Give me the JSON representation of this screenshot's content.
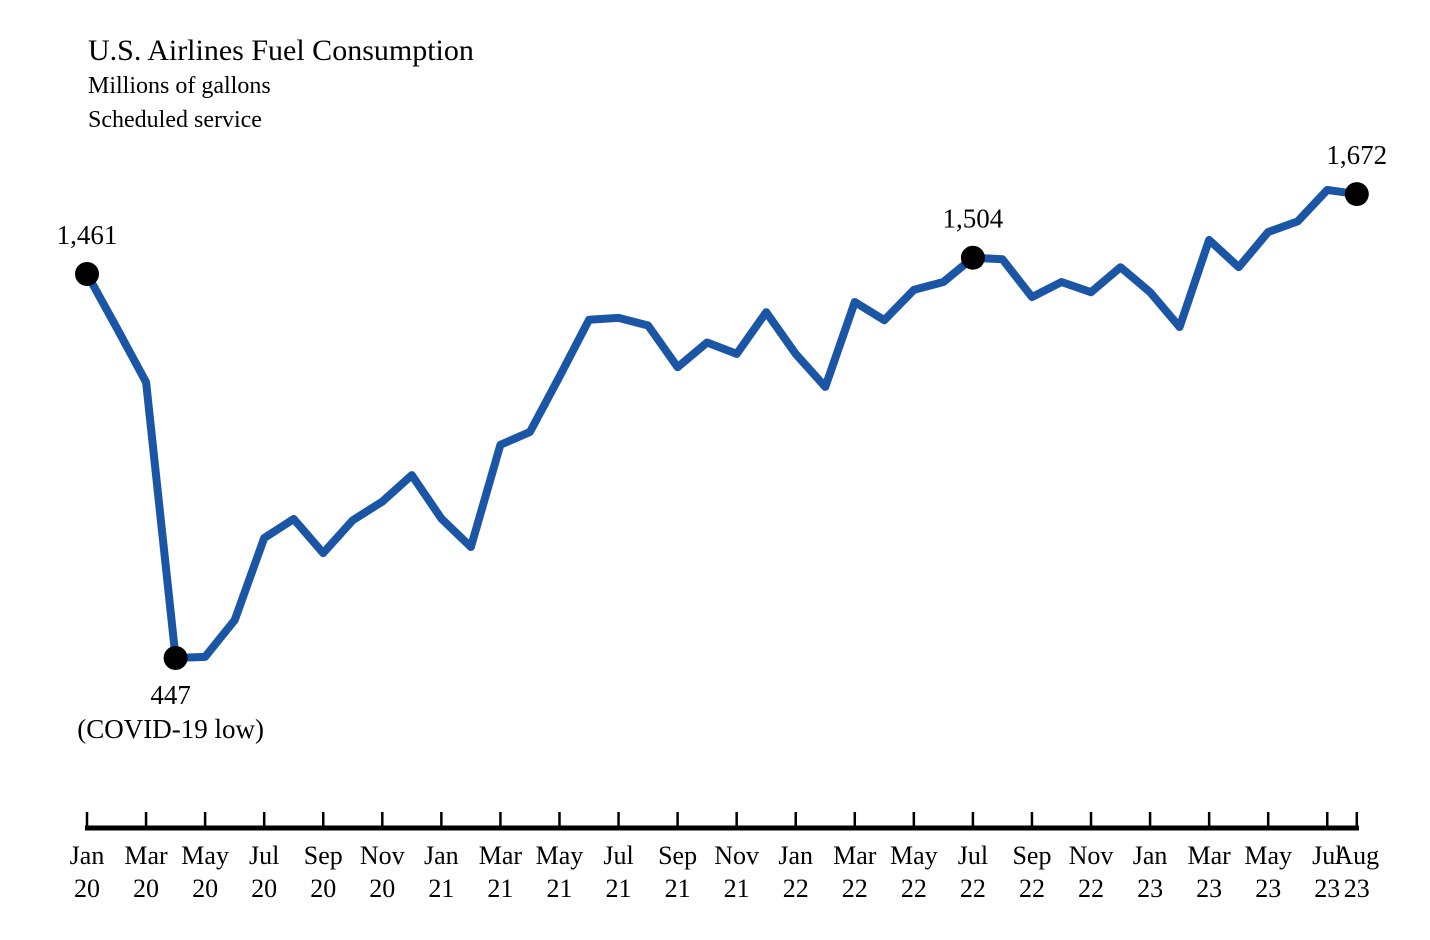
{
  "header": {
    "title": "U.S. Airlines Fuel Consumption",
    "subtitle_units": "Millions of gallons",
    "subtitle_service": "Scheduled service"
  },
  "chart_data": {
    "type": "line",
    "title": "U.S. Airlines Fuel Consumption",
    "ylabel": "Millions of gallons",
    "note": "Scheduled service",
    "legend": "none",
    "grid": false,
    "x": [
      "Jan 20",
      "Feb 20",
      "Mar 20",
      "Apr 20",
      "May 20",
      "Jun 20",
      "Jul 20",
      "Aug 20",
      "Sep 20",
      "Oct 20",
      "Nov 20",
      "Dec 20",
      "Jan 21",
      "Feb 21",
      "Mar 21",
      "Apr 21",
      "May 21",
      "Jun 21",
      "Jul 21",
      "Aug 21",
      "Sep 21",
      "Oct 21",
      "Nov 21",
      "Dec 21",
      "Jan 22",
      "Feb 22",
      "Mar 22",
      "Apr 22",
      "May 22",
      "Jun 22",
      "Jul 22",
      "Aug 22",
      "Sep 22",
      "Oct 22",
      "Nov 22",
      "Dec 22",
      "Jan 23",
      "Feb 23",
      "Mar 23",
      "Apr 23",
      "May 23",
      "Jun 23",
      "Jul 23",
      "Aug 23"
    ],
    "values": [
      1461,
      1320,
      1175,
      447,
      450,
      547,
      764,
      814,
      724,
      811,
      860,
      930,
      815,
      740,
      1010,
      1044,
      1190,
      1340,
      1345,
      1325,
      1215,
      1280,
      1250,
      1360,
      1250,
      1163,
      1387,
      1339,
      1419,
      1440,
      1504,
      1500,
      1400,
      1440,
      1413,
      1479,
      1413,
      1321,
      1551,
      1479,
      1572,
      1600,
      1683,
      1672
    ],
    "ylim": [
      447,
      1683
    ],
    "x_tick_labels": [
      {
        "month": "Jan",
        "year": "20",
        "index": 0
      },
      {
        "month": "Mar",
        "year": "20",
        "index": 2
      },
      {
        "month": "May",
        "year": "20",
        "index": 4
      },
      {
        "month": "Jul",
        "year": "20",
        "index": 6
      },
      {
        "month": "Sep",
        "year": "20",
        "index": 8
      },
      {
        "month": "Nov",
        "year": "20",
        "index": 10
      },
      {
        "month": "Jan",
        "year": "21",
        "index": 12
      },
      {
        "month": "Mar",
        "year": "21",
        "index": 14
      },
      {
        "month": "May",
        "year": "21",
        "index": 16
      },
      {
        "month": "Jul",
        "year": "21",
        "index": 18
      },
      {
        "month": "Sep",
        "year": "21",
        "index": 20
      },
      {
        "month": "Nov",
        "year": "21",
        "index": 22
      },
      {
        "month": "Jan",
        "year": "22",
        "index": 24
      },
      {
        "month": "Mar",
        "year": "22",
        "index": 26
      },
      {
        "month": "May",
        "year": "22",
        "index": 28
      },
      {
        "month": "Jul",
        "year": "22",
        "index": 30
      },
      {
        "month": "Sep",
        "year": "22",
        "index": 32
      },
      {
        "month": "Nov",
        "year": "22",
        "index": 34
      },
      {
        "month": "Jan",
        "year": "23",
        "index": 36
      },
      {
        "month": "Mar",
        "year": "23",
        "index": 38
      },
      {
        "month": "May",
        "year": "23",
        "index": 40
      },
      {
        "month": "Jul",
        "year": "23",
        "index": 42
      },
      {
        "month": "Aug",
        "year": "23",
        "index": 43
      }
    ],
    "annotations": [
      {
        "index": 0,
        "label": "1,461",
        "sublabel": "",
        "position": "above"
      },
      {
        "index": 3,
        "label": "447",
        "sublabel": "(COVID-19 low)",
        "position": "below"
      },
      {
        "index": 30,
        "label": "1,504",
        "sublabel": "",
        "position": "above"
      },
      {
        "index": 43,
        "label": "1,672",
        "sublabel": "",
        "position": "above"
      }
    ],
    "line_color": "#1b55a5",
    "marker_color": "#000000",
    "axis_color": "#000000"
  }
}
